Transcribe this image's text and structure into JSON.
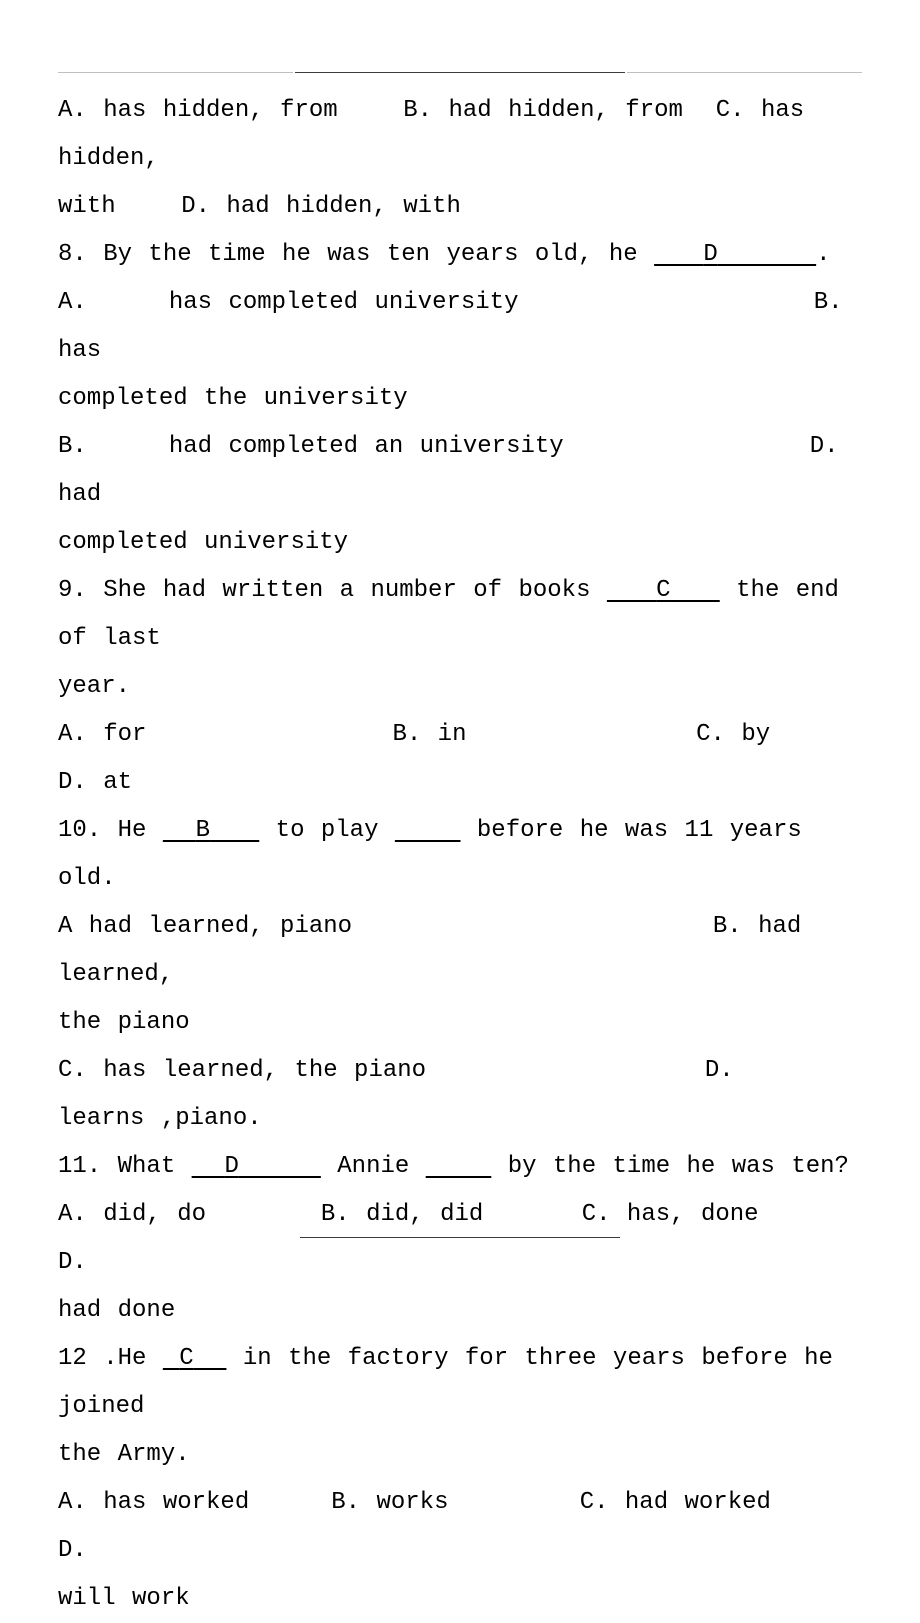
{
  "q7_opts": {
    "a": "A. has hidden, from",
    "b": "B. had hidden, from",
    "c": "C. has hidden,",
    "cont1": "with",
    "d": "D. had hidden, with"
  },
  "q8": {
    "prefix": "8. By the time he was ten years old, he ",
    "blank_pre": "   ",
    "answer": "D",
    "blank_post": "      ",
    "suffix": "."
  },
  "q8_opts": {
    "a_label": "A.",
    "a_text": "has completed university",
    "b_label": "B. has",
    "b_cont": "completed the university",
    "c_label": "B.",
    "c_text": "had completed an university",
    "d_label": "D. had",
    "d_cont": "completed university"
  },
  "q9": {
    "prefix": "9. She had written a number of books ",
    "blank_pre": "   ",
    "answer": "C",
    "blank_post": "   ",
    "suffix": " the end of last",
    "line2": "year."
  },
  "q9_opts": {
    "a": "A. for",
    "b": "B. in",
    "c": "C. by",
    "d": "D. at"
  },
  "q10": {
    "prefix": "10. He ",
    "blank_pre": "  ",
    "answer": "B",
    "blank_post": "   ",
    "mid": " to play ",
    "blank2": "    ",
    "suffix": " before he was 11 years old."
  },
  "q10_opts": {
    "a": "A had learned, piano",
    "b": "B. had learned,",
    "b_cont": "the piano",
    "c": "C. has learned, the piano",
    "d": "D.",
    "d_cont": "learns ,piano."
  },
  "q11": {
    "prefix": "11. What ",
    "blank_pre": "  ",
    "answer": "D",
    "blank_post": "     ",
    "mid": " Annie ",
    "blank2": "    ",
    "suffix": " by the time he was ten?"
  },
  "q11_opts": {
    "a": "A. did, do",
    "b": "B. did, did",
    "c": "C. has, done",
    "d": "D.",
    "d_cont": "had done"
  },
  "q12": {
    "prefix": "12 .He ",
    "blank_pre": " ",
    "answer": "C",
    "blank_post": "  ",
    "suffix": " in the factory for three years before he joined",
    "line2": "the Army."
  },
  "q12_opts": {
    "a": "A. has worked",
    "b": "B. works",
    "c": "C. had worked",
    "d": "D.",
    "d_cont": "will work"
  }
}
